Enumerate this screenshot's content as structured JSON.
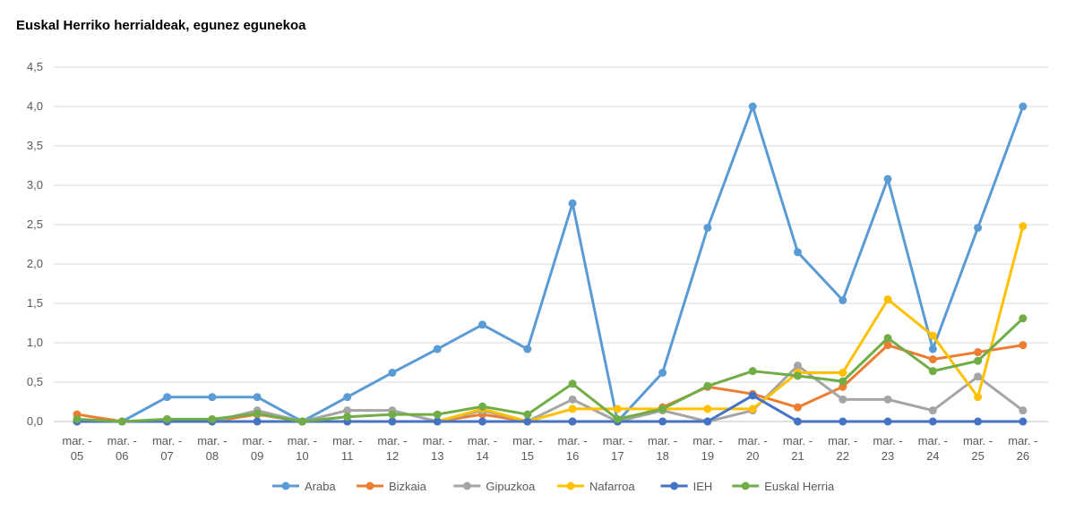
{
  "chart_data": {
    "type": "line",
    "title": "Euskal Herriko herrialdeak, egunez egunekoa",
    "categories": [
      {
        "top": "mar. -",
        "bottom": "05"
      },
      {
        "top": "mar. -",
        "bottom": "06"
      },
      {
        "top": "mar. -",
        "bottom": "07"
      },
      {
        "top": "mar. -",
        "bottom": "08"
      },
      {
        "top": "mar. -",
        "bottom": "09"
      },
      {
        "top": "mar. -",
        "bottom": "10"
      },
      {
        "top": "mar. -",
        "bottom": "11"
      },
      {
        "top": "mar. -",
        "bottom": "12"
      },
      {
        "top": "mar. -",
        "bottom": "13"
      },
      {
        "top": "mar. -",
        "bottom": "14"
      },
      {
        "top": "mar. -",
        "bottom": "15"
      },
      {
        "top": "mar. -",
        "bottom": "16"
      },
      {
        "top": "mar. -",
        "bottom": "17"
      },
      {
        "top": "mar. -",
        "bottom": "18"
      },
      {
        "top": "mar. -",
        "bottom": "19"
      },
      {
        "top": "mar. -",
        "bottom": "20"
      },
      {
        "top": "mar. -",
        "bottom": "21"
      },
      {
        "top": "mar. -",
        "bottom": "22"
      },
      {
        "top": "mar. -",
        "bottom": "23"
      },
      {
        "top": "mar. -",
        "bottom": "24"
      },
      {
        "top": "mar. -",
        "bottom": "25"
      },
      {
        "top": "mar. -",
        "bottom": "26"
      }
    ],
    "yticks": [
      "0,0",
      "0,5",
      "1,0",
      "1,5",
      "2,0",
      "2,5",
      "3,0",
      "3,5",
      "4,0",
      "4,5"
    ],
    "ylim": [
      0,
      4.5
    ],
    "grid": true,
    "legend_position": "bottom",
    "series": [
      {
        "name": "Araba",
        "color": "#5B9BD5",
        "values": [
          0.0,
          0.0,
          0.31,
          0.31,
          0.31,
          0.0,
          0.31,
          0.62,
          0.92,
          1.23,
          0.92,
          2.77,
          0.0,
          0.62,
          2.46,
          4.0,
          2.15,
          1.54,
          3.08,
          0.92,
          2.46,
          4.0
        ]
      },
      {
        "name": "Bizkaia",
        "color": "#ED7D31",
        "values": [
          0.09,
          0.0,
          0.0,
          0.0,
          0.09,
          0.0,
          0.0,
          0.0,
          0.0,
          0.09,
          0.0,
          0.0,
          0.0,
          0.18,
          0.44,
          0.35,
          0.18,
          0.44,
          0.97,
          0.79,
          0.88,
          0.97
        ]
      },
      {
        "name": "Gipuzkoa",
        "color": "#A5A5A5",
        "values": [
          0.0,
          0.0,
          0.0,
          0.0,
          0.14,
          0.0,
          0.14,
          0.14,
          0.0,
          0.14,
          0.0,
          0.28,
          0.0,
          0.14,
          0.0,
          0.14,
          0.71,
          0.28,
          0.28,
          0.14,
          0.57,
          0.14
        ]
      },
      {
        "name": "Nafarroa",
        "color": "#FFC000",
        "values": [
          0.0,
          0.0,
          0.0,
          0.0,
          0.0,
          0.0,
          0.0,
          0.0,
          0.0,
          0.16,
          0.0,
          0.16,
          0.16,
          0.16,
          0.16,
          0.16,
          0.62,
          0.62,
          1.55,
          1.09,
          0.31,
          2.48
        ]
      },
      {
        "name": "IEH",
        "color": "#4472C4",
        "values": [
          0.0,
          0.0,
          0.0,
          0.0,
          0.0,
          0.0,
          0.0,
          0.0,
          0.0,
          0.0,
          0.0,
          0.0,
          0.0,
          0.0,
          0.0,
          0.33,
          0.0,
          0.0,
          0.0,
          0.0,
          0.0,
          0.0
        ]
      },
      {
        "name": "Euskal Herria",
        "color": "#70AD47",
        "values": [
          0.03,
          0.0,
          0.03,
          0.03,
          0.1,
          0.0,
          0.06,
          0.09,
          0.09,
          0.19,
          0.09,
          0.48,
          0.03,
          0.16,
          0.45,
          0.64,
          0.58,
          0.51,
          1.06,
          0.64,
          0.77,
          1.31
        ]
      }
    ]
  }
}
